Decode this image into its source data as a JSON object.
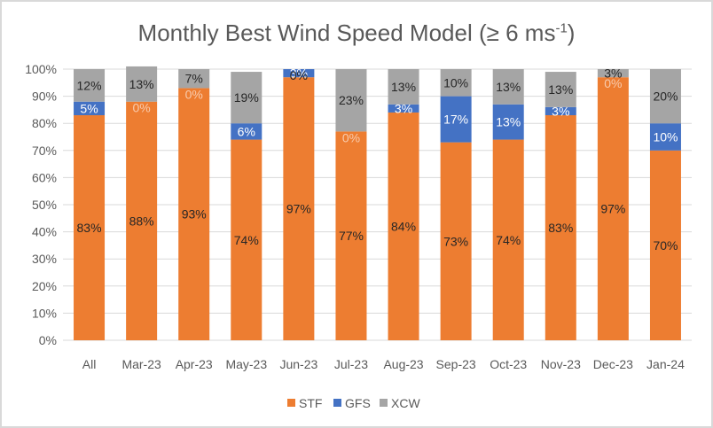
{
  "chart_data": {
    "type": "bar",
    "stacked": true,
    "title": "Monthly Best Wind Speed Model (≥ 6 ms",
    "title_superscript": "-1",
    "title_suffix": ")",
    "categories": [
      "All",
      "Mar-23",
      "Apr-23",
      "May-23",
      "Jun-23",
      "Jul-23",
      "Aug-23",
      "Sep-23",
      "Oct-23",
      "Nov-23",
      "Dec-23",
      "Jan-24"
    ],
    "series": [
      {
        "name": "STF",
        "color": "#ED7D31",
        "values": [
          83,
          88,
          93,
          74,
          97,
          77,
          84,
          73,
          74,
          83,
          97,
          70
        ],
        "labels": [
          "83%",
          "88%",
          "93%",
          "74%",
          "97%",
          "77%",
          "84%",
          "73%",
          "74%",
          "83%",
          "97%",
          "70%"
        ]
      },
      {
        "name": "GFS",
        "color": "#4472C4",
        "values": [
          5,
          0,
          0,
          6,
          3,
          0,
          3,
          17,
          13,
          3,
          0,
          10
        ],
        "labels": [
          "5%",
          "0%",
          "0%",
          "6%",
          "3%",
          "0%",
          "3%",
          "17%",
          "13%",
          "3%",
          "0%",
          "10%"
        ]
      },
      {
        "name": "XCW",
        "color": "#A5A5A5",
        "values": [
          12,
          13,
          7,
          19,
          0,
          23,
          13,
          10,
          13,
          13,
          3,
          20
        ],
        "labels": [
          "12%",
          "13%",
          "7%",
          "19%",
          "0%",
          "23%",
          "13%",
          "10%",
          "13%",
          "13%",
          "3%",
          "20%"
        ]
      }
    ],
    "y_ticks": [
      "0%",
      "10%",
      "20%",
      "30%",
      "40%",
      "50%",
      "60%",
      "70%",
      "80%",
      "90%",
      "100%"
    ],
    "ylim": [
      0,
      100
    ],
    "grid": true,
    "legend_position": "bottom"
  }
}
